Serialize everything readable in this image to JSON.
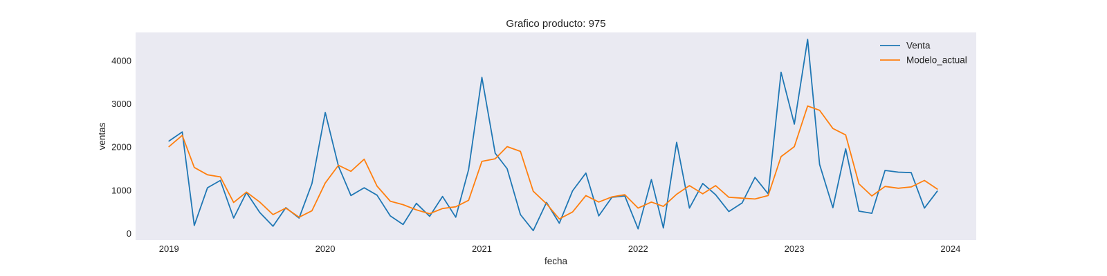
{
  "colors": {
    "background": "#ffffff",
    "plot_area": "#eaeaf2",
    "text": "#222222",
    "series_venta": "#1f77b4",
    "series_modelo": "#ff7f0e"
  },
  "chart_data": {
    "type": "line",
    "title": "Grafico producto: 975",
    "xlabel": "fecha",
    "ylabel": "ventas",
    "grid": false,
    "legend_position": "top-right",
    "xlim": [
      "2018-10-15",
      "2024-03-01"
    ],
    "ylim": [
      -150,
      4650
    ],
    "xticks": [
      {
        "label": "2019",
        "date": "2019-01-01"
      },
      {
        "label": "2020",
        "date": "2020-01-01"
      },
      {
        "label": "2021",
        "date": "2021-01-01"
      },
      {
        "label": "2022",
        "date": "2022-01-01"
      },
      {
        "label": "2023",
        "date": "2023-01-01"
      },
      {
        "label": "2024",
        "date": "2024-01-01"
      }
    ],
    "yticks": [
      0,
      1000,
      2000,
      3000,
      4000
    ],
    "x": [
      "2019-01",
      "2019-02",
      "2019-03",
      "2019-04",
      "2019-05",
      "2019-06",
      "2019-07",
      "2019-08",
      "2019-09",
      "2019-10",
      "2019-11",
      "2019-12",
      "2020-01",
      "2020-02",
      "2020-03",
      "2020-04",
      "2020-05",
      "2020-06",
      "2020-07",
      "2020-08",
      "2020-09",
      "2020-10",
      "2020-11",
      "2020-12",
      "2021-01",
      "2021-02",
      "2021-03",
      "2021-04",
      "2021-05",
      "2021-06",
      "2021-07",
      "2021-08",
      "2021-09",
      "2021-10",
      "2021-11",
      "2021-12",
      "2022-01",
      "2022-02",
      "2022-03",
      "2022-04",
      "2022-05",
      "2022-06",
      "2022-07",
      "2022-08",
      "2022-09",
      "2022-10",
      "2022-11",
      "2022-12",
      "2023-01",
      "2023-02",
      "2023-03",
      "2023-04",
      "2023-05",
      "2023-06",
      "2023-07",
      "2023-08",
      "2023-09",
      "2023-10",
      "2023-11",
      "2023-12"
    ],
    "series": [
      {
        "name": "Venta",
        "color": "#1f77b4",
        "values": [
          2140,
          2350,
          190,
          1060,
          1230,
          360,
          950,
          490,
          170,
          600,
          360,
          1160,
          2800,
          1560,
          880,
          1060,
          890,
          410,
          210,
          700,
          400,
          860,
          380,
          1480,
          3610,
          1860,
          1500,
          440,
          70,
          720,
          240,
          990,
          1400,
          410,
          840,
          870,
          110,
          1250,
          130,
          2110,
          590,
          1160,
          900,
          510,
          710,
          1300,
          920,
          3730,
          2530,
          4490,
          1600,
          600,
          1960,
          520,
          470,
          1460,
          1420,
          1410,
          590,
          980
        ]
      },
      {
        "name": "Modelo_actual",
        "color": "#ff7f0e",
        "values": [
          2010,
          2270,
          1530,
          1360,
          1310,
          720,
          960,
          730,
          440,
          590,
          380,
          530,
          1170,
          1580,
          1440,
          1720,
          1100,
          750,
          670,
          550,
          460,
          580,
          620,
          770,
          1670,
          1730,
          2010,
          1900,
          980,
          690,
          340,
          500,
          880,
          730,
          850,
          900,
          590,
          730,
          630,
          910,
          1110,
          920,
          1110,
          840,
          820,
          800,
          880,
          1780,
          2010,
          2950,
          2850,
          2430,
          2280,
          1150,
          870,
          1090,
          1050,
          1080,
          1230,
          1030
        ]
      }
    ]
  }
}
